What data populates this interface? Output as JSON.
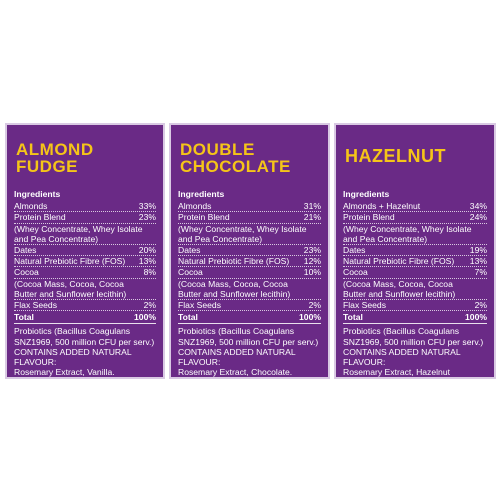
{
  "panels": [
    {
      "title_lines": [
        "ALMOND",
        "FUDGE"
      ],
      "ingredients_heading": "Ingredients",
      "items": [
        {
          "name": "Almonds",
          "pct": "33%"
        },
        {
          "name": "Protein Blend",
          "pct": "23%"
        },
        {
          "name": "(Whey Concentrate, Whey Isolate\nand Pea Concentrate)",
          "pct": ""
        },
        {
          "name": "Dates",
          "pct": "20%"
        },
        {
          "name": "Natural Prebiotic Fibre (FOS)",
          "pct": "13%"
        },
        {
          "name": "Cocoa",
          "pct": "8%"
        },
        {
          "name": "(Cocoa Mass, Cocoa, Cocoa\nButter and Sunflower lecithin)",
          "pct": ""
        },
        {
          "name": "Flax Seeds",
          "pct": "2%"
        }
      ],
      "total_label": "Total",
      "total_value": "100%",
      "probiotics": "Probiotics (Bacillus Coagulans\nSNZ1969, 500 million CFU per serv.)",
      "flavour_heading": "CONTAINS ADDED NATURAL FLAVOUR:",
      "flavour": "Rosemary Extract, Vanilla."
    },
    {
      "title_lines": [
        "DOUBLE",
        "CHOCOLATE"
      ],
      "ingredients_heading": "Ingredients",
      "items": [
        {
          "name": "Almonds",
          "pct": "31%"
        },
        {
          "name": "Protein Blend",
          "pct": "21%"
        },
        {
          "name": "(Whey Concentrate, Whey Isolate\nand Pea Concentrate)",
          "pct": ""
        },
        {
          "name": "Dates",
          "pct": "23%"
        },
        {
          "name": "Natural Prebiotic Fibre (FOS)",
          "pct": "12%"
        },
        {
          "name": "Cocoa",
          "pct": "10%"
        },
        {
          "name": "(Cocoa Mass, Cocoa, Cocoa\nButter and Sunflower lecithin)",
          "pct": ""
        },
        {
          "name": "Flax Seeds",
          "pct": "2%"
        }
      ],
      "total_label": "Total",
      "total_value": "100%",
      "probiotics": "Probiotics (Bacillus Coagulans\nSNZ1969, 500 million CFU per serv.)",
      "flavour_heading": "CONTAINS ADDED NATURAL FLAVOUR:",
      "flavour": "Rosemary Extract, Chocolate."
    },
    {
      "title_lines": [
        "HAZELNUT"
      ],
      "ingredients_heading": "Ingredients",
      "items": [
        {
          "name": "Almonds + Hazelnut",
          "pct": "34%"
        },
        {
          "name": "Protein Blend",
          "pct": "24%"
        },
        {
          "name": "(Whey Concentrate, Whey Isolate\nand Pea Concentrate)",
          "pct": ""
        },
        {
          "name": "Dates",
          "pct": "19%"
        },
        {
          "name": "Natural Prebiotic Fibre (FOS)",
          "pct": "13%"
        },
        {
          "name": "Cocoa",
          "pct": "7%"
        },
        {
          "name": "(Cocoa Mass, Cocoa, Cocoa\nButter and Sunflower lecithin)",
          "pct": ""
        },
        {
          "name": "Flax Seeds",
          "pct": "2%"
        }
      ],
      "total_label": "Total",
      "total_value": "100%",
      "probiotics": "Probiotics (Bacillus Coagulans\nSNZ1969, 500 million CFU per serv.)",
      "flavour_heading": "CONTAINS ADDED NATURAL FLAVOUR:",
      "flavour": "Rosemary Extract, Hazelnut"
    }
  ],
  "colors": {
    "panel_background": "#6a2a86",
    "title_yellow": "#f5c518",
    "text": "#ffffff"
  }
}
